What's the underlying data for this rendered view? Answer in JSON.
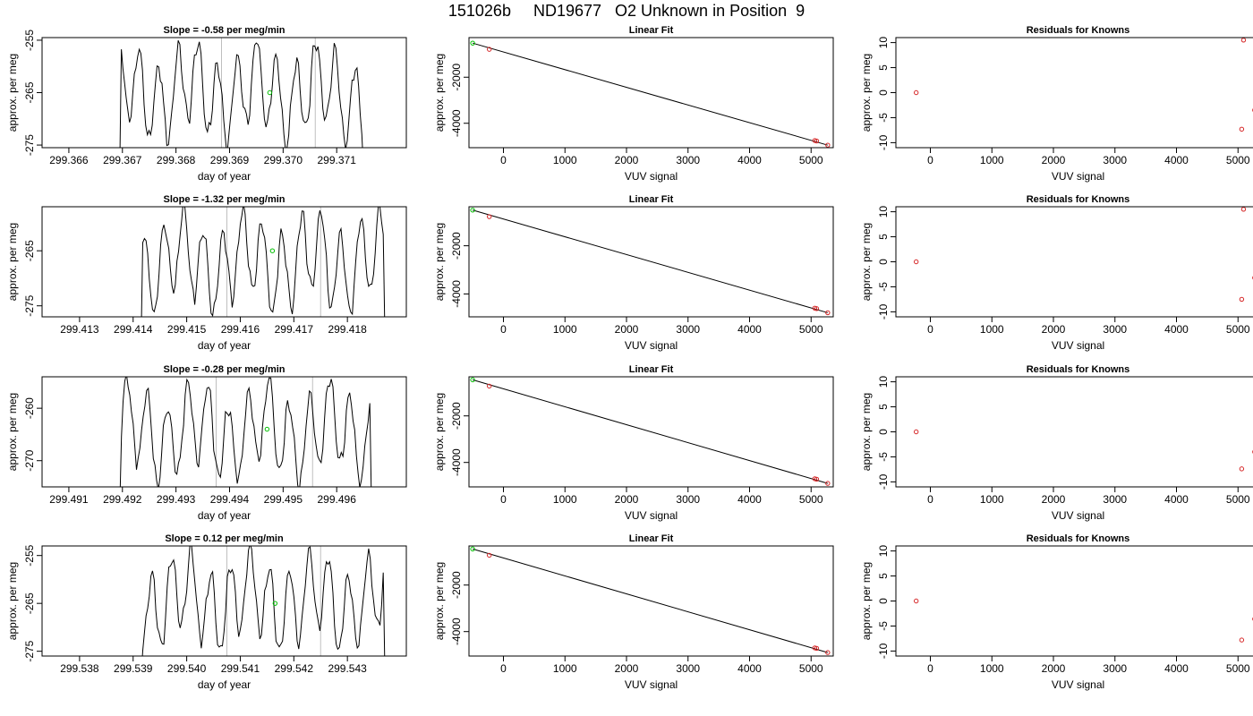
{
  "header": {
    "title": "151026b     ND19677   O2 Unknown in Position  9"
  },
  "colors": {
    "line": "#000000",
    "point_known": "#d62728",
    "point_unknown": "#00c000",
    "marker_line": "#bfbfbf"
  },
  "chart_data": [
    {
      "type": "line",
      "title": "Slope =  -0.58  per meg/min",
      "xlabel": "day of year",
      "ylabel": "approx. per meg",
      "xlim": [
        299.3655,
        299.3723
      ],
      "ylim": [
        -275.5,
        -254.5
      ],
      "xticks": [
        "299.366",
        "299.367",
        "299.368",
        "299.369",
        "299.370",
        "299.371"
      ],
      "xtick_values": [
        299.366,
        299.367,
        299.368,
        299.369,
        299.37,
        299.371
      ],
      "yticks": [
        "-255",
        "-265",
        "-275"
      ],
      "ytick_values": [
        -255,
        -265,
        -275
      ],
      "x_start": 299.36695,
      "x_end": 299.3715,
      "marker_lines": [
        299.36885,
        299.3706
      ],
      "highlight_point": {
        "x": 299.36975,
        "y": -265
      },
      "grid": false,
      "legend": "none"
    },
    {
      "type": "scatter",
      "title": "Linear Fit",
      "xlabel": "VUV signal",
      "ylabel": "approx. per meg",
      "xlim": [
        -560,
        5360
      ],
      "ylim": [
        -5060,
        -280
      ],
      "xticks": [
        "0",
        "1000",
        "2000",
        "3000",
        "4000",
        "5000"
      ],
      "xtick_values": [
        0,
        1000,
        2000,
        3000,
        4000,
        5000
      ],
      "yticks": [
        "-2000",
        "-4000"
      ],
      "ytick_values": [
        -2000,
        -4000
      ],
      "points": [
        {
          "x": -500,
          "y": -520,
          "kind": "unknown"
        },
        {
          "x": -230,
          "y": -790,
          "kind": "known"
        },
        {
          "x": 5060,
          "y": -4750,
          "kind": "known"
        },
        {
          "x": 5090,
          "y": -4770,
          "kind": "known"
        },
        {
          "x": 5270,
          "y": -4950,
          "kind": "known"
        }
      ],
      "fit_line": [
        [
          -500,
          -520
        ],
        [
          5270,
          -4950
        ]
      ],
      "grid": false,
      "legend": "none"
    },
    {
      "type": "scatter",
      "title": "Residuals for Knowns",
      "xlabel": "VUV signal",
      "ylabel": "approx. per meg",
      "xlim": [
        -560,
        5360
      ],
      "ylim": [
        -11,
        11
      ],
      "xticks": [
        "0",
        "1000",
        "2000",
        "3000",
        "4000",
        "5000"
      ],
      "xtick_values": [
        0,
        1000,
        2000,
        3000,
        4000,
        5000
      ],
      "yticks": [
        "10",
        "5",
        "0",
        "-5",
        "-10"
      ],
      "ytick_values": [
        10,
        5,
        0,
        -5,
        -10
      ],
      "points": [
        {
          "x": -230,
          "y": 0
        },
        {
          "x": 5060,
          "y": -7.3
        },
        {
          "x": 5090,
          "y": 10.5
        },
        {
          "x": 5270,
          "y": -3.5
        }
      ],
      "grid": false,
      "legend": "none"
    },
    {
      "type": "line",
      "title": "Slope =  -1.32  per meg/min",
      "xlabel": "day of year",
      "ylabel": "approx. per meg",
      "xlim": [
        299.4123,
        299.4191
      ],
      "ylim": [
        -277,
        -257
      ],
      "xticks": [
        "299.413",
        "299.414",
        "299.415",
        "299.416",
        "299.417",
        "299.418"
      ],
      "xtick_values": [
        299.413,
        299.414,
        299.415,
        299.416,
        299.417,
        299.418
      ],
      "yticks": [
        "-265",
        "-275"
      ],
      "ytick_values": [
        -265,
        -275
      ],
      "x_start": 299.41415,
      "x_end": 299.4187,
      "marker_lines": [
        299.41575,
        299.4175
      ],
      "highlight_point": {
        "x": 299.4166,
        "y": -265
      },
      "grid": false,
      "legend": "none"
    },
    {
      "type": "scatter",
      "title": "Linear Fit",
      "xlabel": "VUV signal",
      "ylabel": "approx. per meg",
      "xlim": [
        -560,
        5360
      ],
      "ylim": [
        -4950,
        -380
      ],
      "xticks": [
        "0",
        "1000",
        "2000",
        "3000",
        "4000",
        "5000"
      ],
      "xtick_values": [
        0,
        1000,
        2000,
        3000,
        4000,
        5000
      ],
      "yticks": [
        "-2000",
        "-4000"
      ],
      "ytick_values": [
        -2000,
        -4000
      ],
      "points": [
        {
          "x": -500,
          "y": -520,
          "kind": "unknown"
        },
        {
          "x": -230,
          "y": -790,
          "kind": "known"
        },
        {
          "x": 5060,
          "y": -4590,
          "kind": "known"
        },
        {
          "x": 5090,
          "y": -4610,
          "kind": "known"
        },
        {
          "x": 5270,
          "y": -4780,
          "kind": "known"
        }
      ],
      "fit_line": [
        [
          -500,
          -520
        ],
        [
          5270,
          -4780
        ]
      ],
      "grid": false,
      "legend": "none"
    },
    {
      "type": "scatter",
      "title": "Residuals for Knowns",
      "xlabel": "VUV signal",
      "ylabel": "approx. per meg",
      "xlim": [
        -560,
        5360
      ],
      "ylim": [
        -11,
        11
      ],
      "xticks": [
        "0",
        "1000",
        "2000",
        "3000",
        "4000",
        "5000"
      ],
      "xtick_values": [
        0,
        1000,
        2000,
        3000,
        4000,
        5000
      ],
      "yticks": [
        "10",
        "5",
        "0",
        "-5",
        "-10"
      ],
      "ytick_values": [
        10,
        5,
        0,
        -5,
        -10
      ],
      "points": [
        {
          "x": -230,
          "y": 0
        },
        {
          "x": 5060,
          "y": -7.5
        },
        {
          "x": 5090,
          "y": 10.5
        },
        {
          "x": 5270,
          "y": -3.2
        }
      ],
      "grid": false,
      "legend": "none"
    },
    {
      "type": "line",
      "title": "Slope =  -0.28  per meg/min",
      "xlabel": "day of year",
      "ylabel": "approx. per meg",
      "xlim": [
        299.4905,
        299.4973
      ],
      "ylim": [
        -275,
        -254
      ],
      "xticks": [
        "299.491",
        "299.492",
        "299.493",
        "299.494",
        "299.495",
        "299.496"
      ],
      "xtick_values": [
        299.491,
        299.492,
        299.493,
        299.494,
        299.495,
        299.496
      ],
      "yticks": [
        "-260",
        "-270"
      ],
      "ytick_values": [
        -260,
        -270
      ],
      "x_start": 299.49195,
      "x_end": 299.49665,
      "marker_lines": [
        299.49375,
        299.49555
      ],
      "highlight_point": {
        "x": 299.4947,
        "y": -264
      },
      "grid": false,
      "legend": "none"
    },
    {
      "type": "scatter",
      "title": "Linear Fit",
      "xlabel": "VUV signal",
      "ylabel": "approx. per meg",
      "xlim": [
        -560,
        5360
      ],
      "ylim": [
        -5050,
        -320
      ],
      "xticks": [
        "0",
        "1000",
        "2000",
        "3000",
        "4000",
        "5000"
      ],
      "xtick_values": [
        0,
        1000,
        2000,
        3000,
        4000,
        5000
      ],
      "yticks": [
        "-2000",
        "-4000"
      ],
      "ytick_values": [
        -2000,
        -4000
      ],
      "points": [
        {
          "x": -500,
          "y": -450,
          "kind": "unknown"
        },
        {
          "x": -230,
          "y": -720,
          "kind": "known"
        },
        {
          "x": 5060,
          "y": -4700,
          "kind": "known"
        },
        {
          "x": 5090,
          "y": -4720,
          "kind": "known"
        },
        {
          "x": 5270,
          "y": -4900,
          "kind": "known"
        }
      ],
      "fit_line": [
        [
          -500,
          -450
        ],
        [
          5270,
          -4900
        ]
      ],
      "grid": false,
      "legend": "none"
    },
    {
      "type": "scatter",
      "title": "Residuals for Knowns",
      "xlabel": "VUV signal",
      "ylabel": "approx. per meg",
      "xlim": [
        -560,
        5360
      ],
      "ylim": [
        -11,
        11
      ],
      "xticks": [
        "0",
        "1000",
        "2000",
        "3000",
        "4000",
        "5000"
      ],
      "xtick_values": [
        0,
        1000,
        2000,
        3000,
        4000,
        5000
      ],
      "yticks": [
        "10",
        "5",
        "0",
        "-5",
        "-10"
      ],
      "ytick_values": [
        10,
        5,
        0,
        -5,
        -10
      ],
      "points": [
        {
          "x": -230,
          "y": 0
        },
        {
          "x": 5060,
          "y": -7.4
        },
        {
          "x": 5270,
          "y": -4.0
        }
      ],
      "grid": false,
      "legend": "none"
    },
    {
      "type": "line",
      "title": "Slope =  0.12  per meg/min",
      "xlabel": "day of year",
      "ylabel": "approx. per meg",
      "xlim": [
        299.5373,
        299.5441
      ],
      "ylim": [
        -276,
        -253
      ],
      "xticks": [
        "299.538",
        "299.539",
        "299.540",
        "299.541",
        "299.542",
        "299.543"
      ],
      "xtick_values": [
        299.538,
        299.539,
        299.54,
        299.541,
        299.542,
        299.543
      ],
      "yticks": [
        "-255",
        "-265",
        "-275"
      ],
      "ytick_values": [
        -255,
        -265,
        -275
      ],
      "x_start": 299.53915,
      "x_end": 299.5437,
      "marker_lines": [
        299.54075,
        299.5425
      ],
      "highlight_point": {
        "x": 299.54165,
        "y": -265
      },
      "grid": false,
      "legend": "none"
    },
    {
      "type": "scatter",
      "title": "Linear Fit",
      "xlabel": "VUV signal",
      "ylabel": "approx. per meg",
      "xlim": [
        -560,
        5360
      ],
      "ylim": [
        -5050,
        -320
      ],
      "xticks": [
        "0",
        "1000",
        "2000",
        "3000",
        "4000",
        "5000"
      ],
      "xtick_values": [
        0,
        1000,
        2000,
        3000,
        4000,
        5000
      ],
      "yticks": [
        "-2000",
        "-4000"
      ],
      "ytick_values": [
        -2000,
        -4000
      ],
      "points": [
        {
          "x": -500,
          "y": -450,
          "kind": "unknown"
        },
        {
          "x": -230,
          "y": -720,
          "kind": "known"
        },
        {
          "x": 5060,
          "y": -4700,
          "kind": "known"
        },
        {
          "x": 5090,
          "y": -4720,
          "kind": "known"
        },
        {
          "x": 5270,
          "y": -4900,
          "kind": "known"
        }
      ],
      "fit_line": [
        [
          -500,
          -450
        ],
        [
          5270,
          -4900
        ]
      ],
      "grid": false,
      "legend": "none"
    },
    {
      "type": "scatter",
      "title": "Residuals for Knowns",
      "xlabel": "VUV signal",
      "ylabel": "approx. per meg",
      "xlim": [
        -560,
        5360
      ],
      "ylim": [
        -11,
        11
      ],
      "xticks": [
        "0",
        "1000",
        "2000",
        "3000",
        "4000",
        "5000"
      ],
      "xtick_values": [
        0,
        1000,
        2000,
        3000,
        4000,
        5000
      ],
      "yticks": [
        "10",
        "5",
        "0",
        "-5",
        "-10"
      ],
      "ytick_values": [
        10,
        5,
        0,
        -5,
        -10
      ],
      "points": [
        {
          "x": -230,
          "y": 0
        },
        {
          "x": 5060,
          "y": -7.8
        },
        {
          "x": 5270,
          "y": -3.6
        }
      ],
      "grid": false,
      "legend": "none"
    }
  ]
}
